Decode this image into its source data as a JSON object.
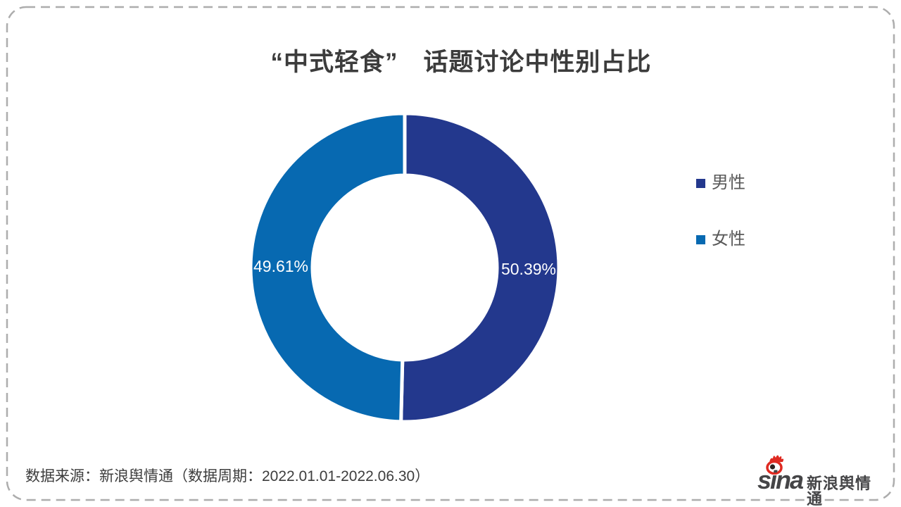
{
  "title": {
    "text": "“中式轻食”　话题讨论中性别占比"
  },
  "chart_data": {
    "type": "pie",
    "subtype": "donut",
    "title": "“中式轻食”　话题讨论中性别占比",
    "legend_position": "right",
    "label_color": "#ffffff",
    "segments": [
      {
        "label": "男性",
        "value": 50.39,
        "display": "50.39%",
        "color": "#23388d"
      },
      {
        "label": "女性",
        "value": 49.61,
        "display": "49.61%",
        "color": "#0769b1"
      }
    ]
  },
  "legend": {
    "items": [
      {
        "label": "男性",
        "color": "#23388d"
      },
      {
        "label": "女性",
        "color": "#0769b1"
      }
    ]
  },
  "footer": {
    "source_text": "数据来源：新浪舆情通（数据周期：2022.01.01-2022.06.30）"
  },
  "logo": {
    "brand": "sina",
    "brand_suffix": "新浪舆情通"
  },
  "colors": {
    "male_blue": "#23388d",
    "female_blue": "#0769b1",
    "title_gray": "#3c3c3c",
    "legend_gray": "#595959",
    "border_gray": "#adadad",
    "logo_red": "#df2a21"
  }
}
